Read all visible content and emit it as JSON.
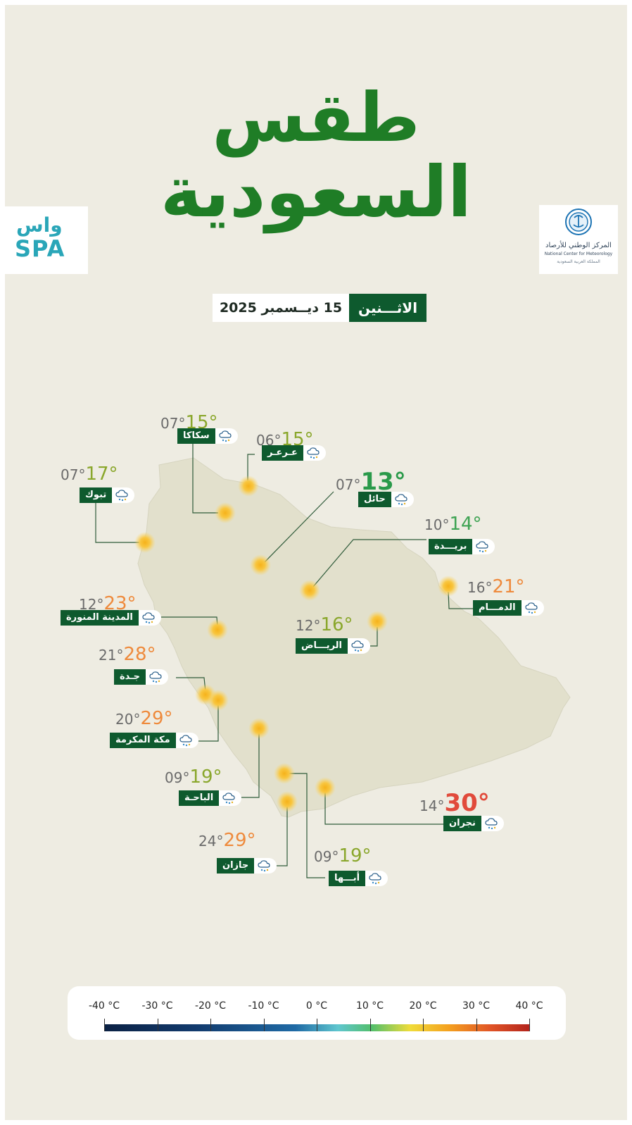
{
  "header": {
    "title_line1": "طقس",
    "title_line2": "السعودية",
    "day": "الاثـــنين",
    "date": "15 ديــسمبر 2025"
  },
  "logos": {
    "spa_top": "واس",
    "spa_bottom": "SPA",
    "ncm_ar": "المركز الوطني للأرصاد",
    "ncm_en": "National Center for Meteorology",
    "ncm_sub": "المملكة العربية السعودية"
  },
  "cities": [
    {
      "name": "سكاكا",
      "min": "07°",
      "max": "15°",
      "max_color": "#8aa72c"
    },
    {
      "name": "عـرعـر",
      "min": "06°",
      "max": "15°",
      "max_color": "#8aa72c"
    },
    {
      "name": "تبوك",
      "min": "07°",
      "max": "17°",
      "max_color": "#8aa72c"
    },
    {
      "name": "حائل",
      "min": "07°",
      "max": "13°",
      "max_color": "#2a9a4a"
    },
    {
      "name": "بريـــدة",
      "min": "10°",
      "max": "14°",
      "max_color": "#3ea353"
    },
    {
      "name": "الدمـــام",
      "min": "16°",
      "max": "21°",
      "max_color": "#ee8a3c"
    },
    {
      "name": "المدينة المنورة",
      "min": "12°",
      "max": "23°",
      "max_color": "#ee8a3c"
    },
    {
      "name": "الريـــاض",
      "min": "12°",
      "max": "16°",
      "max_color": "#8aa72c"
    },
    {
      "name": "جـدة",
      "min": "21°",
      "max": "28°",
      "max_color": "#ee8a3c"
    },
    {
      "name": "مكة المكرمة",
      "min": "20°",
      "max": "29°",
      "max_color": "#ee8a3c"
    },
    {
      "name": "الباحـة",
      "min": "09°",
      "max": "19°",
      "max_color": "#8aa72c"
    },
    {
      "name": "نجران",
      "min": "14°",
      "max": "30°",
      "max_color": "#e14a3b"
    },
    {
      "name": "جازان",
      "min": "24°",
      "max": "29°",
      "max_color": "#ee8a3c"
    },
    {
      "name": "أبـــها",
      "min": "09°",
      "max": "19°",
      "max_color": "#8aa72c"
    }
  ],
  "legend": {
    "labels": [
      "-40 °C",
      "-30 °C",
      "-20 °C",
      "-10 °C",
      "0 °C",
      "10 °C",
      "20 °C",
      "30 °C",
      "40 °C"
    ]
  },
  "colors": {
    "brand_green": "#1f7d26",
    "label_green": "#0e5a2e",
    "background": "#eeece2",
    "map_fill": "#e2e0cc"
  }
}
